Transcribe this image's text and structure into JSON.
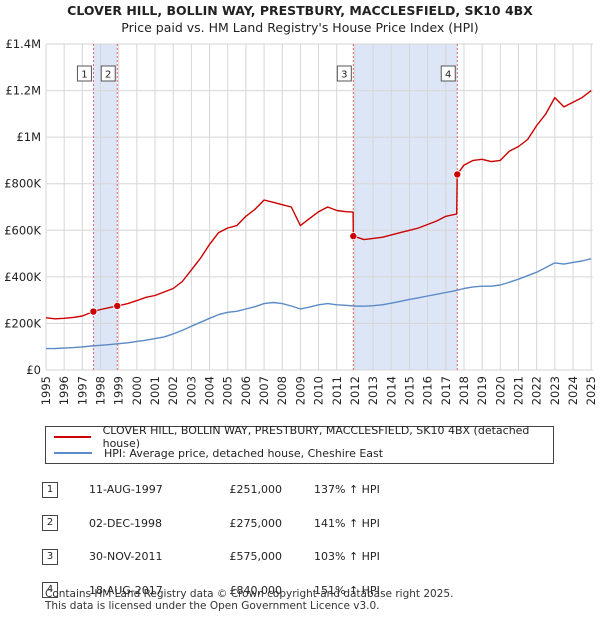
{
  "header": {
    "title": "CLOVER HILL, BOLLIN WAY, PRESTBURY, MACCLESFIELD, SK10 4BX",
    "subtitle": "Price paid vs. HM Land Registry's House Price Index (HPI)"
  },
  "chart_data": {
    "type": "line",
    "title": "CLOVER HILL, BOLLIN WAY, PRESTBURY, MACCLESFIELD, SK10 4BX",
    "subtitle": "Price paid vs. HM Land Registry's House Price Index (HPI)",
    "xlabel": "",
    "ylabel": "",
    "xlim": [
      1995,
      2025.1
    ],
    "ylim": [
      0,
      1400000
    ],
    "grid": true,
    "y_ticks": [
      0,
      200000,
      400000,
      600000,
      800000,
      1000000,
      1200000,
      1400000
    ],
    "y_tick_labels": [
      "£0",
      "£200K",
      "£400K",
      "£600K",
      "£800K",
      "£1M",
      "£1.2M",
      "£1.4M"
    ],
    "x_ticks": [
      1995,
      1996,
      1997,
      1998,
      1999,
      2000,
      2001,
      2002,
      2003,
      2004,
      2005,
      2006,
      2007,
      2008,
      2009,
      2010,
      2011,
      2012,
      2013,
      2014,
      2015,
      2016,
      2017,
      2018,
      2019,
      2020,
      2021,
      2022,
      2023,
      2024,
      2025
    ],
    "shaded_periods": [
      [
        1997.61,
        1998.92
      ],
      [
        2011.91,
        2017.63
      ]
    ],
    "series": [
      {
        "name": "CLOVER HILL, BOLLIN WAY, PRESTBURY, MACCLESFIELD, SK10 4BX (detached house)",
        "color": "#cc0000",
        "x": [
          1995,
          1995.5,
          1996,
          1996.5,
          1997,
          1997.61,
          1998,
          1998.5,
          1998.92,
          1999.5,
          2000,
          2000.5,
          2001,
          2001.5,
          2002,
          2002.5,
          2003,
          2003.5,
          2004,
          2004.5,
          2005,
          2005.5,
          2006,
          2006.5,
          2007,
          2007.5,
          2008,
          2008.5,
          2009,
          2009.5,
          2010,
          2010.5,
          2011,
          2011.5,
          2011.9,
          2011.91,
          2012.5,
          2013,
          2013.5,
          2014,
          2014.5,
          2015,
          2015.5,
          2016,
          2016.5,
          2017,
          2017.6,
          2017.63,
          2018,
          2018.5,
          2019,
          2019.5,
          2020,
          2020.5,
          2021,
          2021.5,
          2022,
          2022.5,
          2023,
          2023.5,
          2024,
          2024.5,
          2025
        ],
        "values": [
          224000,
          220000,
          222000,
          226000,
          232000,
          251000,
          260000,
          268000,
          275000,
          285000,
          298000,
          312000,
          320000,
          335000,
          350000,
          380000,
          430000,
          480000,
          540000,
          590000,
          610000,
          620000,
          660000,
          690000,
          730000,
          720000,
          710000,
          700000,
          620000,
          650000,
          680000,
          700000,
          685000,
          680000,
          678000,
          575000,
          560000,
          565000,
          570000,
          580000,
          590000,
          600000,
          610000,
          625000,
          640000,
          660000,
          670000,
          840000,
          880000,
          900000,
          905000,
          895000,
          900000,
          940000,
          960000,
          990000,
          1050000,
          1100000,
          1170000,
          1130000,
          1150000,
          1170000,
          1200000
        ]
      },
      {
        "name": "HPI: Average price, detached house, Cheshire East",
        "color": "#5b8ac6",
        "x": [
          1995,
          1995.5,
          1996,
          1996.5,
          1997,
          1997.5,
          1998,
          1998.5,
          1999,
          1999.5,
          2000,
          2000.5,
          2001,
          2001.5,
          2002,
          2002.5,
          2003,
          2003.5,
          2004,
          2004.5,
          2005,
          2005.5,
          2006,
          2006.5,
          2007,
          2007.5,
          2008,
          2008.5,
          2009,
          2009.5,
          2010,
          2010.5,
          2011,
          2011.5,
          2012,
          2012.5,
          2013,
          2013.5,
          2014,
          2014.5,
          2015,
          2015.5,
          2016,
          2016.5,
          2017,
          2017.5,
          2018,
          2018.5,
          2019,
          2019.5,
          2020,
          2020.5,
          2021,
          2021.5,
          2022,
          2022.5,
          2023,
          2023.5,
          2024,
          2024.5,
          2025
        ],
        "values": [
          92000,
          92500,
          94000,
          96000,
          99000,
          103000,
          106000,
          109000,
          113000,
          117000,
          123000,
          128000,
          135000,
          142000,
          155000,
          170000,
          188000,
          205000,
          222000,
          238000,
          248000,
          252000,
          262000,
          272000,
          285000,
          290000,
          285000,
          275000,
          262000,
          270000,
          280000,
          285000,
          280000,
          278000,
          275000,
          274000,
          276000,
          280000,
          287000,
          295000,
          303000,
          310000,
          318000,
          325000,
          333000,
          340000,
          350000,
          357000,
          360000,
          360000,
          365000,
          377000,
          390000,
          405000,
          420000,
          440000,
          460000,
          455000,
          462000,
          468000,
          478000
        ]
      }
    ],
    "sale_markers": [
      {
        "label": "1",
        "x": 1997.61,
        "value": 251000
      },
      {
        "label": "2",
        "x": 1998.92,
        "value": 275000
      },
      {
        "label": "3",
        "x": 2011.91,
        "value": 575000
      },
      {
        "label": "4",
        "x": 2017.63,
        "value": 840000
      }
    ]
  },
  "legend": {
    "property_label": "CLOVER HILL, BOLLIN WAY, PRESTBURY, MACCLESFIELD, SK10 4BX (detached house)",
    "hpi_label": "HPI: Average price, detached house, Cheshire East"
  },
  "sales": [
    {
      "num": "1",
      "date": "11-AUG-1997",
      "price": "£251,000",
      "hpi": "137% ↑ HPI"
    },
    {
      "num": "2",
      "date": "02-DEC-1998",
      "price": "£275,000",
      "hpi": "141% ↑ HPI"
    },
    {
      "num": "3",
      "date": "30-NOV-2011",
      "price": "£575,000",
      "hpi": "103% ↑ HPI"
    },
    {
      "num": "4",
      "date": "18-AUG-2017",
      "price": "£840,000",
      "hpi": "151% ↑ HPI"
    }
  ],
  "footer": {
    "line1": "Contains HM Land Registry data © Crown copyright and database right 2025.",
    "line2": "This data is licensed under the Open Government Licence v3.0."
  }
}
